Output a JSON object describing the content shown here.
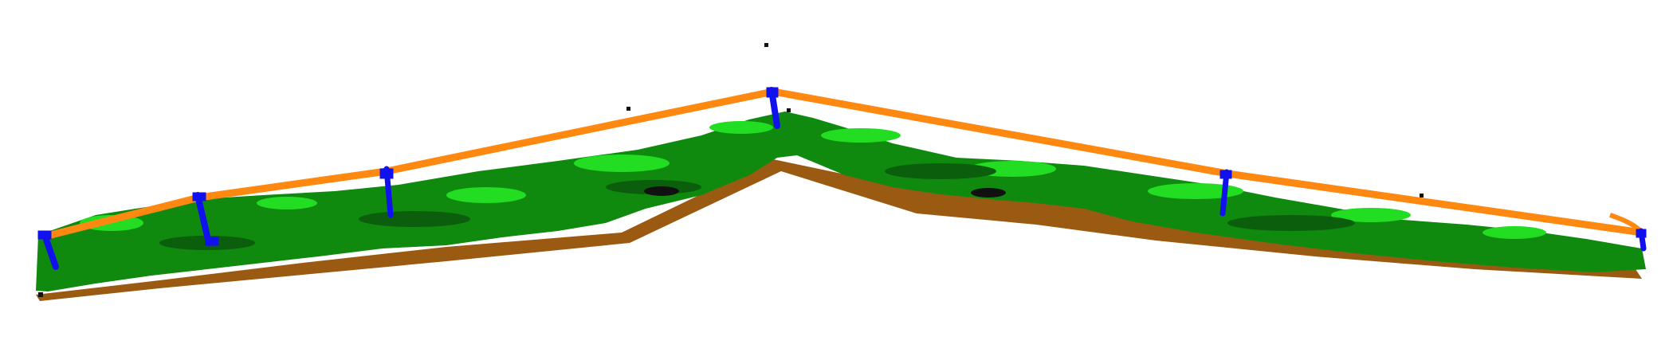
{
  "scene": {
    "background": "#ffffff",
    "classes": [
      {
        "id": "ground",
        "color": "#9a5a12"
      },
      {
        "id": "vegetation",
        "color": "#0f8a0f"
      },
      {
        "id": "vegetation-highlight",
        "color": "#22dd22"
      },
      {
        "id": "towers",
        "color": "#1111ee"
      },
      {
        "id": "power-line",
        "color": "#ff8811"
      },
      {
        "id": "unclassified",
        "color": "#111111"
      }
    ],
    "tower_count": 6,
    "conductor_spans": 5
  }
}
